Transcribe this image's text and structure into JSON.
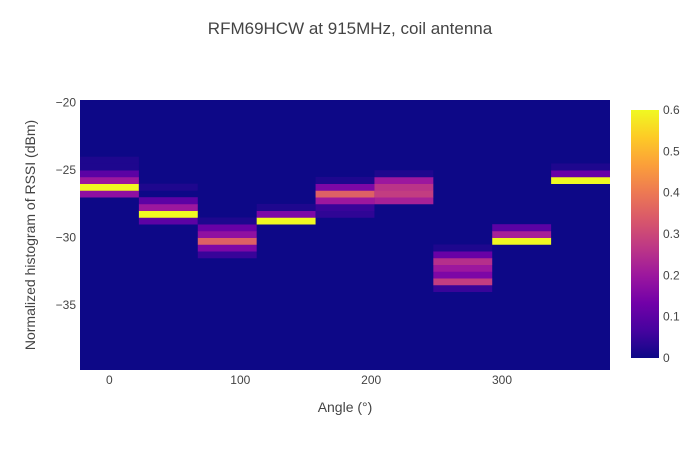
{
  "chart_data": {
    "type": "heatmap",
    "title": "RFM69HCW at 915MHz, coil antenna",
    "xlabel": "Angle (°)",
    "ylabel": "Normalized histogram of RSSI (dBm)",
    "x_tick_labels": [
      "0",
      "100",
      "200",
      "300"
    ],
    "y_tick_labels": [
      "−20",
      "−25",
      "−30",
      "−35"
    ],
    "xlim": [
      -22.5,
      382.5
    ],
    "ylim": [
      -39.8,
      -19.8
    ],
    "bin_width_x": 45,
    "bin_height_y": 0.5,
    "colorscale": "plasma",
    "zlim": [
      0,
      0.6
    ],
    "colorbar_tick_labels": [
      "0.6",
      "0.5",
      "0.4",
      "0.3",
      "0.2",
      "0.1",
      "0"
    ],
    "background_color": "#0d0887",
    "columns": [
      {
        "angle": 0,
        "cells": [
          {
            "rssi": -27.0,
            "value": 0.18
          },
          {
            "rssi": -26.5,
            "value": 0.6
          },
          {
            "rssi": -26.0,
            "value": 0.2
          },
          {
            "rssi": -25.5,
            "value": 0.1
          },
          {
            "rssi": -25.0,
            "value": 0.02
          },
          {
            "rssi": -24.5,
            "value": 0.02
          }
        ]
      },
      {
        "angle": 45,
        "cells": [
          {
            "rssi": -29.0,
            "value": 0.1
          },
          {
            "rssi": -28.5,
            "value": 0.6
          },
          {
            "rssi": -28.0,
            "value": 0.2
          },
          {
            "rssi": -27.5,
            "value": 0.1
          },
          {
            "rssi": -26.5,
            "value": 0.02
          }
        ]
      },
      {
        "angle": 90,
        "cells": [
          {
            "rssi": -31.5,
            "value": 0.05
          },
          {
            "rssi": -31.0,
            "value": 0.15
          },
          {
            "rssi": -30.5,
            "value": 0.35
          },
          {
            "rssi": -30.0,
            "value": 0.18
          },
          {
            "rssi": -29.5,
            "value": 0.12
          },
          {
            "rssi": -29.0,
            "value": 0.02
          }
        ]
      },
      {
        "angle": 135,
        "cells": [
          {
            "rssi": -29.0,
            "value": 0.6
          },
          {
            "rssi": -28.5,
            "value": 0.15
          },
          {
            "rssi": -28.0,
            "value": 0.02
          }
        ]
      },
      {
        "angle": 180,
        "cells": [
          {
            "rssi": -28.5,
            "value": 0.04
          },
          {
            "rssi": -28.0,
            "value": 0.05
          },
          {
            "rssi": -27.5,
            "value": 0.2
          },
          {
            "rssi": -27.0,
            "value": 0.35
          },
          {
            "rssi": -26.5,
            "value": 0.15
          },
          {
            "rssi": -26.0,
            "value": 0.02
          }
        ]
      },
      {
        "angle": 225,
        "cells": [
          {
            "rssi": -27.5,
            "value": 0.22
          },
          {
            "rssi": -27.0,
            "value": 0.28
          },
          {
            "rssi": -26.5,
            "value": 0.26
          },
          {
            "rssi": -26.0,
            "value": 0.2
          },
          {
            "rssi": -25.5,
            "value": 0.02
          }
        ]
      },
      {
        "angle": 270,
        "cells": [
          {
            "rssi": -34.0,
            "value": 0.05
          },
          {
            "rssi": -33.5,
            "value": 0.28
          },
          {
            "rssi": -33.0,
            "value": 0.15
          },
          {
            "rssi": -32.5,
            "value": 0.2
          },
          {
            "rssi": -32.0,
            "value": 0.25
          },
          {
            "rssi": -31.5,
            "value": 0.12
          },
          {
            "rssi": -31.0,
            "value": 0.02
          }
        ]
      },
      {
        "angle": 315,
        "cells": [
          {
            "rssi": -30.5,
            "value": 0.6
          },
          {
            "rssi": -30.0,
            "value": 0.22
          },
          {
            "rssi": -29.5,
            "value": 0.1
          }
        ]
      },
      {
        "angle": 360,
        "cells": [
          {
            "rssi": -26.0,
            "value": 0.6
          },
          {
            "rssi": -25.5,
            "value": 0.12
          },
          {
            "rssi": -25.0,
            "value": 0.02
          }
        ]
      }
    ]
  }
}
